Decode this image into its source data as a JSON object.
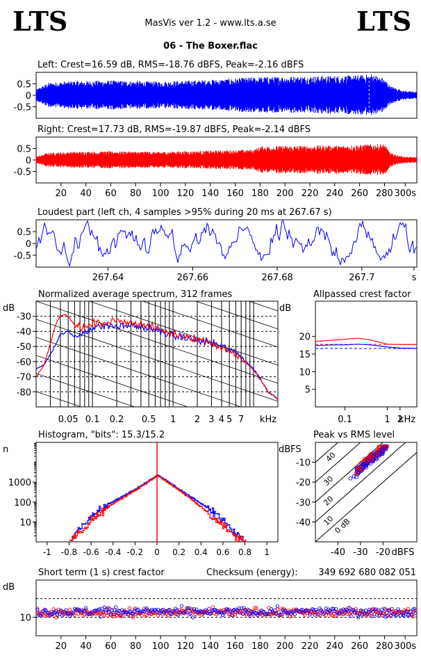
{
  "header": {
    "logo_left": "LTS",
    "logo_right": "LTS",
    "app_title": "MasVis ver 1.2 - www.lts.a.se",
    "track_title": "06 - The Boxer.flac"
  },
  "colors": {
    "left_channel": "#0000ff",
    "right_channel": "#ff0000",
    "axes": "#000000"
  },
  "chart_data": [
    {
      "id": "left-waveform",
      "type": "area",
      "title": "Left: Crest=16.59 dB, RMS=-18.76 dBFS, Peak=-2.16 dBFS",
      "yticks": [
        "0.5",
        "0",
        "-0.5"
      ],
      "ylim": [
        -1,
        1
      ],
      "xlim": [
        0,
        306
      ],
      "marker_x": 267.67,
      "color": "#0000ff",
      "envelope": {
        "t": [
          0,
          10,
          30,
          60,
          80,
          100,
          130,
          150,
          170,
          180,
          200,
          220,
          250,
          265,
          270,
          280,
          285,
          295,
          306
        ],
        "amp": [
          0.25,
          0.55,
          0.62,
          0.65,
          0.62,
          0.6,
          0.66,
          0.7,
          0.78,
          0.8,
          0.82,
          0.84,
          0.86,
          0.9,
          0.95,
          0.72,
          0.4,
          0.2,
          0.15
        ]
      }
    },
    {
      "id": "right-waveform",
      "type": "area",
      "title": "Right: Crest=17.73 dB, RMS=-19.87 dBFS, Peak=-2.14 dBFS",
      "yticks": [
        "0.5",
        "0",
        "-0.5"
      ],
      "ylim": [
        -1,
        1
      ],
      "xlim": [
        0,
        306
      ],
      "xticks": [
        "20",
        "40",
        "60",
        "80",
        "100",
        "120",
        "140",
        "160",
        "180",
        "200",
        "220",
        "240",
        "260",
        "280",
        "300s"
      ],
      "color": "#ff0000",
      "envelope": {
        "t": [
          0,
          10,
          30,
          60,
          100,
          150,
          175,
          180,
          200,
          250,
          265,
          280,
          285,
          295,
          306
        ],
        "amp": [
          0.15,
          0.32,
          0.36,
          0.38,
          0.36,
          0.42,
          0.45,
          0.6,
          0.62,
          0.64,
          0.68,
          0.7,
          0.3,
          0.15,
          0.12
        ]
      }
    },
    {
      "id": "loudest-part",
      "type": "line",
      "title": "Loudest part (left  ch, 4 samples >95% during 20 ms at 267.67 s)",
      "yticks": [
        "0.5",
        "0",
        "-0.5"
      ],
      "ylim": [
        -1,
        1
      ],
      "xlim": [
        267.623,
        267.713
      ],
      "xticks": [
        "267.64",
        "267.66",
        "267.68",
        "267.7",
        "s"
      ],
      "color": "#0000ff"
    },
    {
      "id": "spectrum",
      "type": "line",
      "title": "Normalized average spectrum, 312 frames",
      "ylabel": "dB",
      "yticks": [
        "-30",
        "-40",
        "-50",
        "-60",
        "-70",
        "-80"
      ],
      "ylim": [
        -90,
        -20
      ],
      "xticks": [
        "0.05",
        "0.1",
        "0.2",
        "0.5",
        "1",
        "2",
        "3",
        "4",
        "5",
        "7",
        "kHz"
      ],
      "xlim": [
        0.02,
        20
      ],
      "xscale": "log",
      "series": [
        {
          "color": "#0000ff",
          "f": [
            0.02,
            0.025,
            0.03,
            0.04,
            0.05,
            0.06,
            0.08,
            0.1,
            0.15,
            0.2,
            0.3,
            0.5,
            0.7,
            1,
            2,
            3,
            5,
            7,
            10,
            15,
            20
          ],
          "db": [
            -65,
            -62,
            -55,
            -42,
            -40,
            -44,
            -40,
            -38,
            -36,
            -37,
            -36,
            -38,
            -40,
            -43,
            -46,
            -48,
            -52,
            -57,
            -65,
            -80,
            -85
          ]
        },
        {
          "color": "#ff0000",
          "f": [
            0.02,
            0.025,
            0.03,
            0.035,
            0.04,
            0.05,
            0.06,
            0.08,
            0.1,
            0.15,
            0.2,
            0.3,
            0.5,
            0.7,
            1,
            2,
            3,
            5,
            7,
            10,
            15,
            20
          ],
          "db": [
            -70,
            -62,
            -48,
            -35,
            -29,
            -30,
            -36,
            -38,
            -35,
            -34,
            -33,
            -34,
            -37,
            -39,
            -42,
            -45,
            -48,
            -53,
            -58,
            -66,
            -80,
            -85
          ]
        }
      ]
    },
    {
      "id": "allpassed-crest",
      "type": "line",
      "title": "Allpassed crest factor",
      "ylabel": "dB",
      "yticks": [
        "20",
        "15",
        "10",
        "5"
      ],
      "ylim": [
        0,
        30
      ],
      "xticks": [
        "0.1",
        "1",
        "2",
        "kHz"
      ],
      "xlim": [
        0.02,
        5
      ],
      "xscale": "log",
      "series": [
        {
          "color": "#ff0000",
          "f": [
            0.02,
            0.05,
            0.1,
            0.2,
            0.4,
            1,
            2,
            5
          ],
          "db": [
            18.6,
            18.9,
            19.2,
            19.5,
            19.0,
            17.8,
            17.7,
            17.7
          ]
        },
        {
          "color": "#0000ff",
          "f": [
            0.02,
            0.05,
            0.1,
            0.2,
            0.4,
            1,
            2,
            5
          ],
          "db": [
            17.4,
            17.6,
            17.6,
            17.8,
            17.6,
            17.0,
            16.7,
            16.6
          ]
        }
      ],
      "dashed_levels": [
        {
          "color": "#ff0000",
          "db": 17.73
        },
        {
          "color": "#0000ff",
          "db": 16.59
        }
      ]
    },
    {
      "id": "histogram",
      "type": "line",
      "title": "Histogram, \"bits\": 15.3/15.2",
      "ylabel": "n",
      "yticks": [
        "1000",
        "100",
        "10"
      ],
      "yscale": "log",
      "ylim": [
        1,
        100000
      ],
      "xticks": [
        "-1",
        "-0.8",
        "-0.6",
        "-0.4",
        "-0.2",
        "0",
        "0.2",
        "0.4",
        "0.6",
        "0.8",
        "1"
      ],
      "xlim": [
        -1.1,
        1.1
      ],
      "series": [
        {
          "color": "#0000ff",
          "x": [
            -0.78,
            -0.7,
            -0.6,
            -0.5,
            -0.4,
            -0.3,
            -0.2,
            -0.1,
            0,
            0.1,
            0.2,
            0.3,
            0.4,
            0.5,
            0.6,
            0.7,
            0.78
          ],
          "n": [
            1.5,
            5,
            20,
            50,
            110,
            220,
            450,
            1000,
            2200,
            1000,
            420,
            190,
            80,
            35,
            12,
            3,
            1.2
          ]
        },
        {
          "color": "#ff0000",
          "x": [
            -0.8,
            -0.7,
            -0.6,
            -0.5,
            -0.4,
            -0.3,
            -0.2,
            -0.1,
            0,
            0.1,
            0.2,
            0.3,
            0.4,
            0.5,
            0.6,
            0.7,
            0.8
          ],
          "n": [
            1.2,
            3,
            12,
            35,
            85,
            190,
            400,
            900,
            2200,
            900,
            380,
            150,
            55,
            18,
            6,
            2,
            1.1
          ]
        }
      ]
    },
    {
      "id": "peak-vs-rms",
      "type": "scatter",
      "title": "Peak vs RMS level",
      "ylabel": "dBFS",
      "xlabel": "dBFS",
      "xticks": [
        "-40",
        "-30",
        "-20"
      ],
      "yticks": [
        "-10",
        "-20",
        "-30",
        "-40"
      ],
      "xlim": [
        -50,
        -5
      ],
      "ylim": [
        -50,
        0
      ],
      "diagonal_labels": [
        "40",
        "30",
        "20",
        "10",
        "0 dB"
      ]
    },
    {
      "id": "short-term-crest",
      "type": "scatter",
      "title": "Short term (1 s) crest factor",
      "ylabel": "dB",
      "yticks": [
        "10"
      ],
      "ylim": [
        0,
        30
      ],
      "xlim": [
        0,
        306
      ],
      "xticks": [
        "20",
        "40",
        "60",
        "80",
        "100",
        "120",
        "140",
        "160",
        "180",
        "200",
        "220",
        "240",
        "260",
        "280",
        "300s"
      ],
      "dashed_levels": [
        10,
        20
      ]
    }
  ],
  "checksum": {
    "label": "Checksum (energy):",
    "value": "349 692 680 082 051"
  }
}
